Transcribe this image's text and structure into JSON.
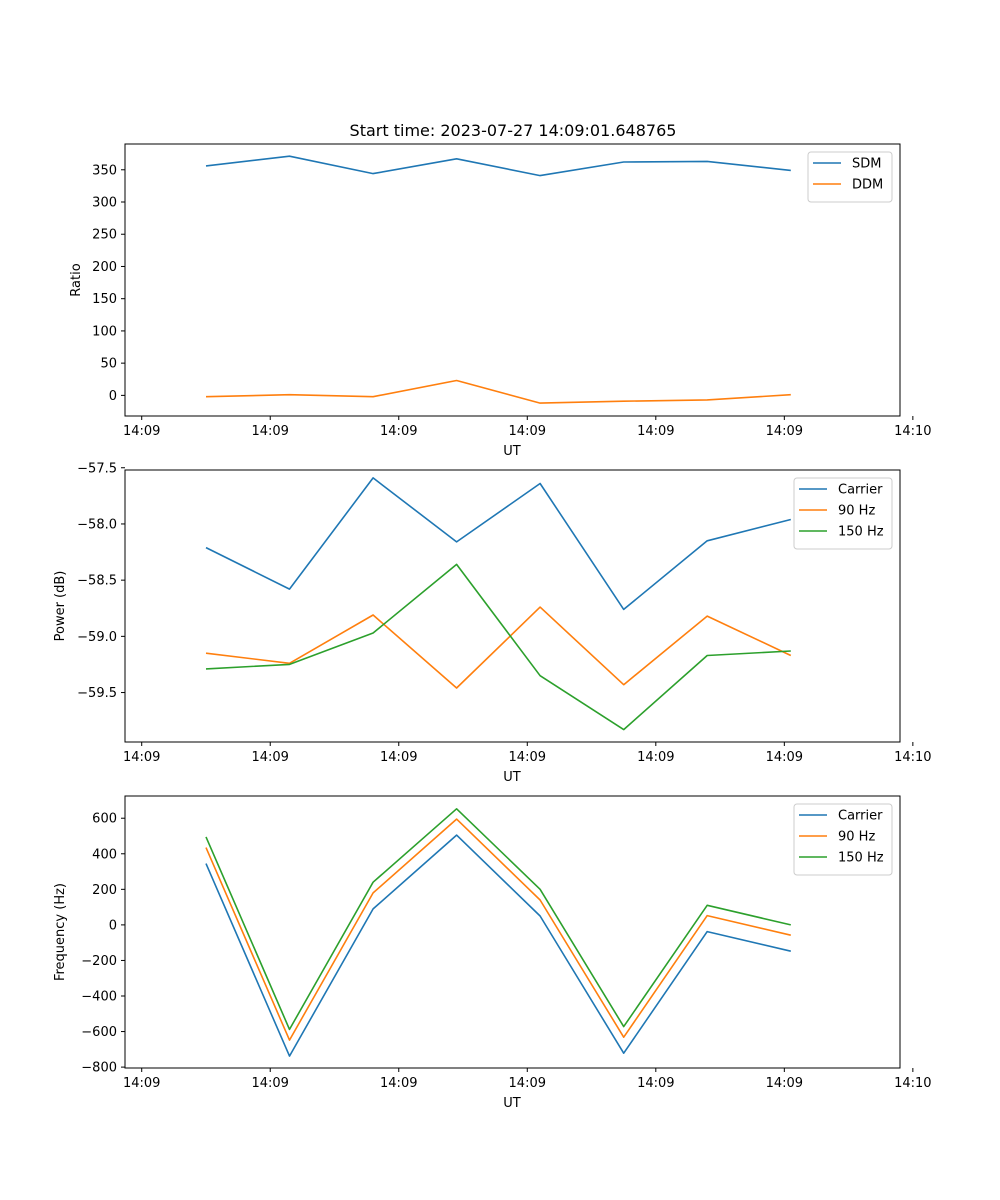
{
  "title": "Start time: 2023-07-27 14:09:01.648765",
  "colors": {
    "blue": "#1f77b4",
    "orange": "#ff7f0e",
    "green": "#2ca02c"
  },
  "chart_data": [
    {
      "type": "line",
      "id": "ratio",
      "xlabel": "UT",
      "ylabel": "Ratio",
      "x": [
        0.5,
        1.15,
        1.8,
        2.45,
        3.1,
        3.75,
        4.4,
        5.05
      ],
      "xlim": [
        -0.13,
        5.9
      ],
      "x_ticks": [
        0,
        1,
        2,
        3,
        4,
        5,
        6
      ],
      "x_tick_labels": [
        "14:09",
        "14:09",
        "14:09",
        "14:09",
        "14:09",
        "14:09",
        "14:10"
      ],
      "ylim": [
        -32,
        390
      ],
      "y_ticks": [
        0,
        50,
        100,
        150,
        200,
        250,
        300,
        350
      ],
      "y_tick_labels": [
        "0",
        "50",
        "100",
        "150",
        "200",
        "250",
        "300",
        "350"
      ],
      "legend_position": "top-right",
      "series": [
        {
          "name": "SDM",
          "color": "#1f77b4",
          "values": [
            356,
            371,
            344,
            367,
            341,
            362,
            363,
            349
          ]
        },
        {
          "name": "DDM",
          "color": "#ff7f0e",
          "values": [
            -2,
            1,
            -2,
            23,
            -12,
            -9,
            -7,
            1
          ]
        }
      ]
    },
    {
      "type": "line",
      "id": "power",
      "xlabel": "UT",
      "ylabel": "Power (dB)",
      "x": [
        0.5,
        1.15,
        1.8,
        2.45,
        3.1,
        3.75,
        4.4,
        5.05
      ],
      "xlim": [
        -0.13,
        5.9
      ],
      "x_ticks": [
        0,
        1,
        2,
        3,
        4,
        5,
        6
      ],
      "x_tick_labels": [
        "14:09",
        "14:09",
        "14:09",
        "14:09",
        "14:09",
        "14:09",
        "14:10"
      ],
      "ylim": [
        -59.94,
        -57.52
      ],
      "y_ticks": [
        -59.5,
        -59.0,
        -58.5,
        -58.0,
        -57.5
      ],
      "y_tick_labels": [
        "−59.5",
        "−59.0",
        "−58.5",
        "−58.0",
        "−57.5"
      ],
      "legend_position": "top-right",
      "series": [
        {
          "name": "Carrier",
          "color": "#1f77b4",
          "values": [
            -58.21,
            -58.58,
            -57.59,
            -58.16,
            -57.64,
            -58.76,
            -58.15,
            -57.96
          ]
        },
        {
          "name": "90 Hz",
          "color": "#ff7f0e",
          "values": [
            -59.15,
            -59.24,
            -58.81,
            -59.46,
            -58.74,
            -59.43,
            -58.82,
            -59.17
          ]
        },
        {
          "name": "150 Hz",
          "color": "#2ca02c",
          "values": [
            -59.29,
            -59.25,
            -58.97,
            -58.36,
            -59.35,
            -59.83,
            -59.17,
            -59.13
          ]
        }
      ]
    },
    {
      "type": "line",
      "id": "frequency",
      "xlabel": "UT",
      "ylabel": "Frequency (Hz)",
      "x": [
        0.5,
        1.15,
        1.8,
        2.45,
        3.1,
        3.75,
        4.4,
        5.05
      ],
      "xlim": [
        -0.13,
        5.9
      ],
      "x_ticks": [
        0,
        1,
        2,
        3,
        4,
        5,
        6
      ],
      "x_tick_labels": [
        "14:09",
        "14:09",
        "14:09",
        "14:09",
        "14:09",
        "14:09",
        "14:10"
      ],
      "ylim": [
        -805,
        725
      ],
      "y_ticks": [
        -800,
        -600,
        -400,
        -200,
        0,
        200,
        400,
        600
      ],
      "y_tick_labels": [
        "−800",
        "−600",
        "−400",
        "−200",
        "0",
        "200",
        "400",
        "600"
      ],
      "legend_position": "top-right",
      "series": [
        {
          "name": "Carrier",
          "color": "#1f77b4",
          "values": [
            345,
            -738,
            90,
            505,
            50,
            -722,
            -38,
            -148
          ]
        },
        {
          "name": "90 Hz",
          "color": "#ff7f0e",
          "values": [
            435,
            -648,
            180,
            595,
            140,
            -632,
            52,
            -58
          ]
        },
        {
          "name": "150 Hz",
          "color": "#2ca02c",
          "values": [
            495,
            -588,
            240,
            653,
            200,
            -572,
            110,
            0
          ]
        }
      ]
    }
  ]
}
